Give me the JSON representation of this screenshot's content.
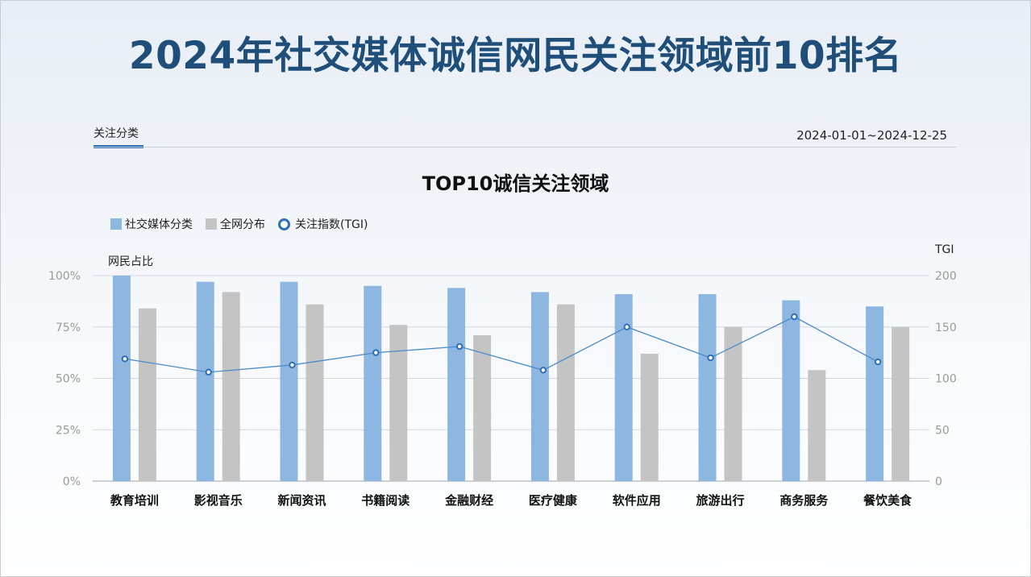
{
  "page": {
    "title": "2024年社交媒体诚信网民关注领域前10排名",
    "tab_label": "关注分类",
    "date_range": "2024-01-01~2024-12-25"
  },
  "colors": {
    "title": "#1f4e79",
    "social": "#8db7e0",
    "network": "#c4c4c4",
    "tgi": "#2e6fb5",
    "tab_accent": "#2e6fb5"
  },
  "chart_data": {
    "type": "bar",
    "title": "TOP10诚信关注领域",
    "ylabel_left": "网民占比",
    "ylabel_right": "TGI",
    "categories": [
      "教育培训",
      "影视音乐",
      "新闻资讯",
      "书籍阅读",
      "金融财经",
      "医疗健康",
      "软件应用",
      "旅游出行",
      "商务服务",
      "餐饮美食"
    ],
    "series": [
      {
        "name": "社交媒体分类",
        "type": "bar",
        "axis": "left",
        "values": [
          100,
          97,
          97,
          95,
          94,
          92,
          91,
          91,
          88,
          85
        ]
      },
      {
        "name": "全网分布",
        "type": "bar",
        "axis": "left",
        "values": [
          84,
          92,
          86,
          76,
          71,
          86,
          62,
          75,
          54,
          75
        ]
      },
      {
        "name": "关注指数(TGI)",
        "type": "line",
        "axis": "right",
        "values": [
          119,
          106,
          113,
          125,
          131,
          108,
          150,
          120,
          160,
          116
        ]
      }
    ],
    "left_axis": {
      "ylim": [
        0,
        100
      ],
      "ticks": [
        "0%",
        "25%",
        "50%",
        "75%",
        "100%"
      ]
    },
    "right_axis": {
      "ylim": [
        0,
        200
      ],
      "ticks": [
        "0",
        "50",
        "100",
        "150",
        "200"
      ]
    },
    "grid": true,
    "legend_position": "top-left"
  }
}
